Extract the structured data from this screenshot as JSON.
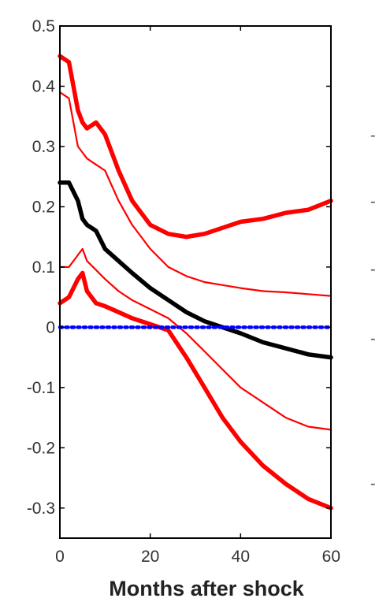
{
  "chart_data": {
    "type": "line",
    "title": "",
    "xlabel": "Months after shock",
    "ylabel": "",
    "xlim": [
      0,
      60
    ],
    "ylim": [
      -0.35,
      0.5
    ],
    "x_ticks": [
      0,
      20,
      40,
      60
    ],
    "x_tick_labels": [
      "0",
      "20",
      "40",
      "60"
    ],
    "y_ticks": [
      0.5,
      0.4,
      0.3,
      0.2,
      0.1,
      0,
      -0.1,
      -0.2,
      -0.3
    ],
    "y_tick_labels": [
      "0.5",
      "0.4",
      "0.3",
      "0.2",
      "0.1",
      "0",
      "-0.1",
      "-0.2",
      "-0.3"
    ],
    "grid": false,
    "legend": "none",
    "x": [
      0,
      2,
      4,
      5,
      6,
      8,
      10,
      13,
      16,
      20,
      24,
      28,
      32,
      36,
      40,
      45,
      50,
      55,
      60
    ],
    "series": [
      {
        "role": "upper-band-outer",
        "color": "#ff0000",
        "style": "thick",
        "values": [
          0.45,
          0.44,
          0.36,
          0.34,
          0.33,
          0.34,
          0.32,
          0.26,
          0.21,
          0.17,
          0.155,
          0.15,
          0.155,
          0.165,
          0.175,
          0.18,
          0.19,
          0.195,
          0.21
        ]
      },
      {
        "role": "upper-band-inner",
        "color": "#ff0000",
        "style": "thin",
        "values": [
          0.39,
          0.38,
          0.3,
          0.29,
          0.28,
          0.27,
          0.26,
          0.21,
          0.17,
          0.13,
          0.1,
          0.085,
          0.075,
          0.07,
          0.065,
          0.06,
          0.058,
          0.055,
          0.052
        ]
      },
      {
        "role": "point-estimate",
        "color": "#000000",
        "style": "thick",
        "values": [
          0.24,
          0.24,
          0.21,
          0.18,
          0.17,
          0.16,
          0.13,
          0.11,
          0.09,
          0.065,
          0.045,
          0.025,
          0.01,
          0.0,
          -0.01,
          -0.025,
          -0.035,
          -0.045,
          -0.05
        ]
      },
      {
        "role": "lower-band-inner",
        "color": "#ff0000",
        "style": "thin",
        "values": [
          0.1,
          0.1,
          0.12,
          0.13,
          0.11,
          0.095,
          0.08,
          0.06,
          0.045,
          0.03,
          0.015,
          -0.01,
          -0.04,
          -0.07,
          -0.1,
          -0.125,
          -0.15,
          -0.165,
          -0.17
        ]
      },
      {
        "role": "lower-band-outer",
        "color": "#ff0000",
        "style": "thick",
        "values": [
          0.04,
          0.05,
          0.08,
          0.09,
          0.06,
          0.04,
          0.035,
          0.025,
          0.015,
          0.005,
          -0.005,
          -0.05,
          -0.1,
          -0.15,
          -0.19,
          -0.23,
          -0.26,
          -0.285,
          -0.3
        ]
      },
      {
        "role": "zero-reference",
        "color": "#0000ff",
        "style": "dotted",
        "values": [
          0,
          0,
          0,
          0,
          0,
          0,
          0,
          0,
          0,
          0,
          0,
          0,
          0,
          0,
          0,
          0,
          0,
          0,
          0
        ]
      }
    ],
    "right_edge_fragments": [
      "-",
      "-",
      "-",
      "-",
      "-"
    ]
  }
}
